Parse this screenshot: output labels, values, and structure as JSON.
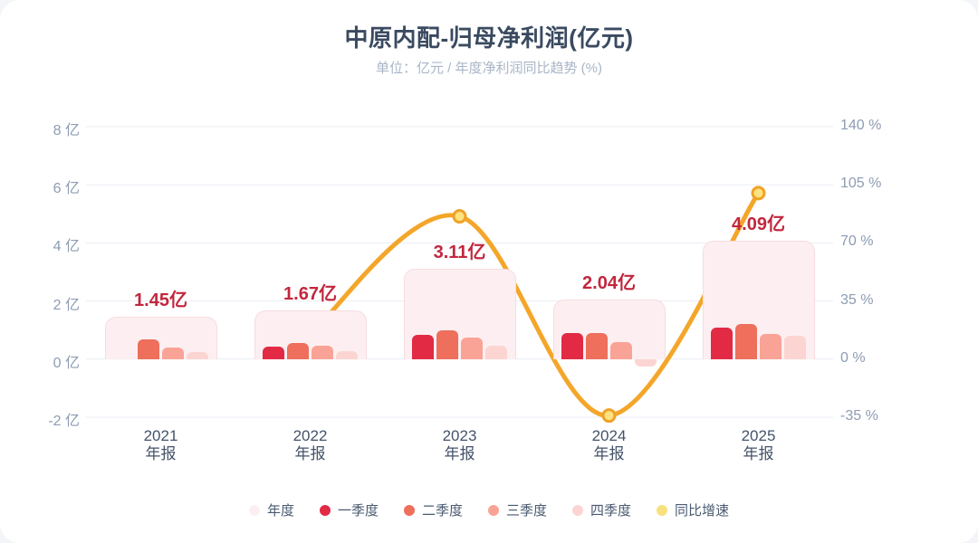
{
  "title": "中原内配-归母净利润(亿元)",
  "subtitle": "单位：亿元 / 年度净利润同比趋势 (%)",
  "colors": {
    "page_bg": "#f3f5f8",
    "card_bg": "#ffffff",
    "title_text": "#3a4a60",
    "subtitle_text": "#a9b5c6",
    "axis_label": "#8d9cb3",
    "x_label": "#44536a",
    "grid": "#e9edf3",
    "value_label": "#c1273e",
    "annual_fill": "#fdeff1",
    "annual_border": "#f5dce1",
    "q1": "#e22a44",
    "q2": "#ee6f5b",
    "q3": "#f9a396",
    "q4": "#fcd5d2",
    "line": "#f4a62a",
    "marker_fill": "#fde380",
    "marker_stroke": "#f0a227",
    "legend_line_dot": "#f8e17c"
  },
  "chart_data": {
    "type": "bar",
    "combo": "grouped bars + annual background bar + smooth line on secondary axis",
    "categories": [
      "2021",
      "2022",
      "2023",
      "2024",
      "2025"
    ],
    "category_suffix": "年报",
    "annual_series": {
      "name": "年度",
      "values": [
        1.45,
        1.67,
        3.11,
        2.04,
        4.09
      ],
      "data_labels": [
        "1.45亿",
        "1.67亿",
        "3.11亿",
        "2.04亿",
        "4.09亿"
      ]
    },
    "quarter_series": [
      {
        "name": "一季度",
        "key": "q1",
        "values": [
          null,
          0.44,
          0.82,
          0.91,
          1.07
        ]
      },
      {
        "name": "二季度",
        "key": "q2",
        "values": [
          0.68,
          0.57,
          1.0,
          0.9,
          1.2
        ]
      },
      {
        "name": "三季度",
        "key": "q3",
        "values": [
          0.4,
          0.45,
          0.73,
          0.58,
          0.88
        ]
      },
      {
        "name": "四季度",
        "key": "q4",
        "values": [
          0.25,
          0.26,
          0.47,
          -0.25,
          0.81
        ]
      }
    ],
    "line_series": {
      "name": "同比增速",
      "unit": "%",
      "values": [
        null,
        15,
        86,
        -34,
        100
      ]
    },
    "left_axis": {
      "unit": "亿",
      "tick_labels": [
        "8 亿",
        "6 亿",
        "4 亿",
        "2 亿",
        "0 亿",
        "-2 亿"
      ],
      "tick_values": [
        8,
        6,
        4,
        2,
        0,
        -2
      ],
      "min": -2,
      "max": 8,
      "grid": true
    },
    "right_axis": {
      "unit": "%",
      "tick_labels": [
        "140 %",
        "105 %",
        "70 %",
        "35 %",
        "0 %",
        "-35 %"
      ],
      "tick_values": [
        140,
        105,
        70,
        35,
        0,
        -35
      ],
      "min": -35,
      "max": 140
    },
    "legend_position": "bottom"
  },
  "legend": [
    {
      "label": "年度",
      "color": "#fdeff1"
    },
    {
      "label": "一季度",
      "color": "#e22a44"
    },
    {
      "label": "二季度",
      "color": "#ee6f5b"
    },
    {
      "label": "三季度",
      "color": "#f9a396"
    },
    {
      "label": "四季度",
      "color": "#fcd5d2"
    },
    {
      "label": "同比增速",
      "color": "#f8e17c"
    }
  ]
}
